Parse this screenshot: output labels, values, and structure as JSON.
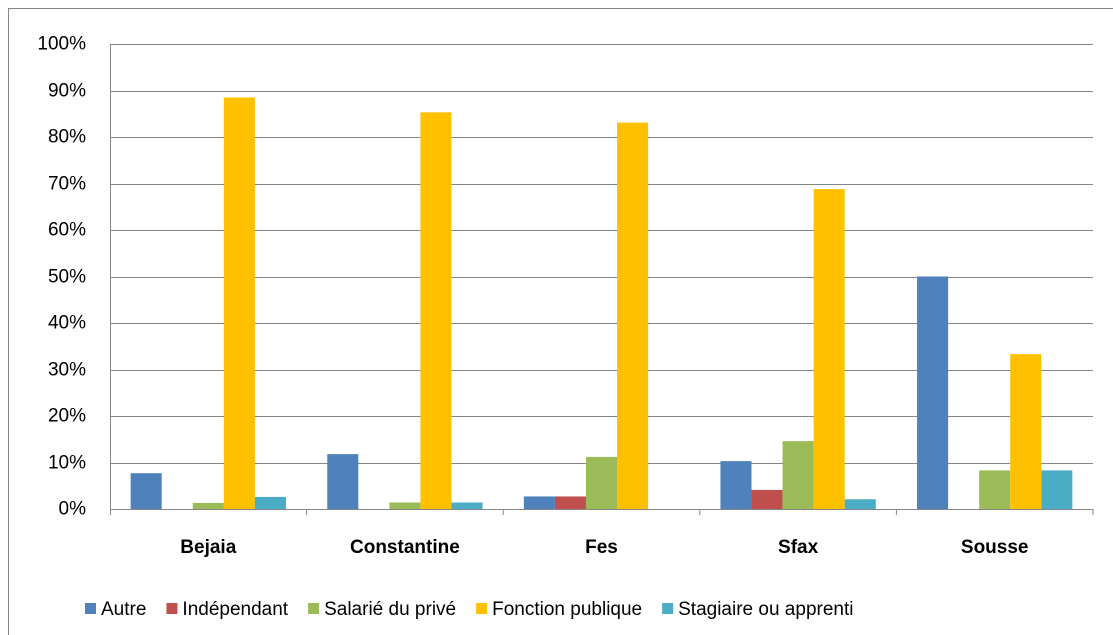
{
  "chart_data": {
    "type": "bar",
    "categories": [
      "Bejaia",
      "Constantine",
      "Fes",
      "Sfax",
      "Sousse"
    ],
    "series": [
      {
        "name": "Autre",
        "color": "#4f81bd",
        "values": [
          7.7,
          11.8,
          2.7,
          10.3,
          50
        ]
      },
      {
        "name": "Indépendant",
        "color": "#c0504d",
        "values": [
          0,
          0,
          2.7,
          4.1,
          0
        ]
      },
      {
        "name": "Salarié du privé",
        "color": "#9bbb59",
        "values": [
          1.3,
          1.4,
          11.2,
          14.6,
          8.3
        ]
      },
      {
        "name": "Fonction publique",
        "color": "#ffc000",
        "values": [
          88.5,
          85.3,
          83.1,
          68.8,
          33.3
        ]
      },
      {
        "name": "Stagiaire ou apprenti",
        "color": "#4bacc6",
        "values": [
          2.6,
          1.4,
          0,
          2.1,
          8.3
        ]
      }
    ],
    "ylim": [
      0,
      100
    ],
    "yticks": [
      {
        "value": 0,
        "label": "0%"
      },
      {
        "value": 10,
        "label": "10%"
      },
      {
        "value": 20,
        "label": "20%"
      },
      {
        "value": 30,
        "label": "30%"
      },
      {
        "value": 40,
        "label": "40%"
      },
      {
        "value": 50,
        "label": "50%"
      },
      {
        "value": 60,
        "label": "60%"
      },
      {
        "value": 70,
        "label": "70%"
      },
      {
        "value": 80,
        "label": "80%"
      },
      {
        "value": 90,
        "label": "90%"
      },
      {
        "value": 100,
        "label": "100%"
      }
    ],
    "grid": true,
    "legend": "bottom"
  }
}
